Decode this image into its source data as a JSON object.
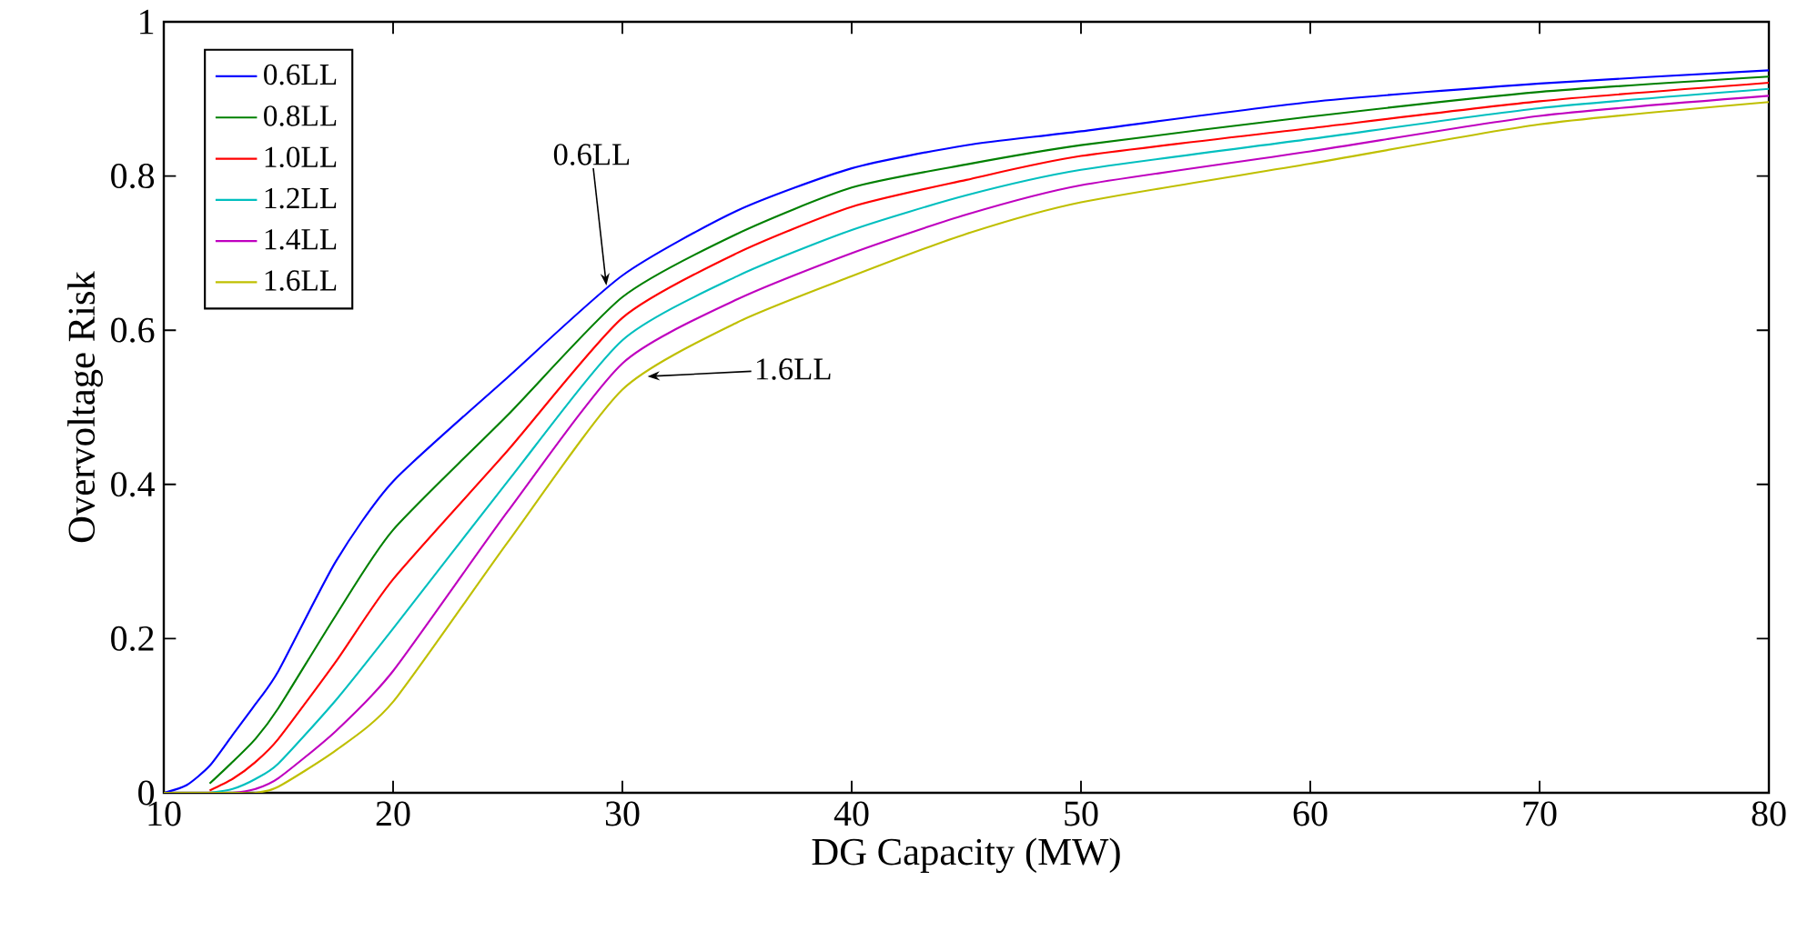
{
  "chart_data": {
    "type": "line",
    "xlabel": "DG Capacity (MW)",
    "ylabel": "Overvoltage Risk",
    "x": [
      10,
      11,
      12,
      13,
      14,
      15,
      17.5,
      20,
      25,
      30,
      35,
      40,
      45,
      50,
      60,
      70,
      80
    ],
    "series": [
      {
        "name": "0.6LL",
        "color": "#0000ff",
        "values": [
          0,
          0.01,
          0.035,
          0.075,
          0.115,
          0.158,
          0.3,
          0.404,
          0.539,
          0.671,
          0.755,
          0.81,
          0.84,
          0.858,
          0.896,
          0.92,
          0.937
        ]
      },
      {
        "name": "0.8LL",
        "color": "#008000",
        "values": [
          null,
          null,
          0.012,
          0.04,
          0.07,
          0.11,
          0.23,
          0.341,
          0.49,
          0.643,
          0.725,
          0.785,
          0.815,
          0.84,
          0.877,
          0.909,
          0.929
        ]
      },
      {
        "name": "1.0LL",
        "color": "#ff0000",
        "values": [
          null,
          null,
          0.003,
          0.018,
          0.04,
          0.07,
          0.17,
          0.277,
          0.444,
          0.616,
          0.7,
          0.76,
          0.795,
          0.826,
          0.862,
          0.897,
          0.921
        ]
      },
      {
        "name": "1.2LL",
        "color": "#00bfbf",
        "values": [
          null,
          null,
          0,
          0.005,
          0.018,
          0.038,
          0.12,
          0.213,
          0.404,
          0.587,
          0.67,
          0.73,
          0.775,
          0.808,
          0.848,
          0.888,
          0.913
        ]
      },
      {
        "name": "1.4LL",
        "color": "#bf00bf",
        "values": [
          null,
          null,
          0,
          0,
          0.005,
          0.019,
          0.08,
          0.158,
          0.365,
          0.557,
          0.64,
          0.7,
          0.75,
          0.788,
          0.832,
          0.878,
          0.904
        ]
      },
      {
        "name": "1.6LL",
        "color": "#bfbf00",
        "values": [
          0,
          0,
          0,
          0,
          0,
          0.008,
          0.055,
          0.118,
          0.325,
          0.523,
          0.61,
          0.67,
          0.725,
          0.766,
          0.816,
          0.867,
          0.896
        ]
      }
    ],
    "xlim": [
      10,
      80
    ],
    "ylim": [
      0,
      1
    ],
    "xticks": [
      10,
      20,
      30,
      40,
      50,
      60,
      70,
      80
    ],
    "yticks": [
      0,
      0.2,
      0.4,
      0.6,
      0.8,
      1
    ],
    "legend": "top left",
    "annotations": [
      {
        "text": "0.6LL",
        "x": 29.3,
        "y": 0.658
      },
      {
        "text": "1.6LL",
        "x": 31.1,
        "y": 0.54
      }
    ]
  }
}
